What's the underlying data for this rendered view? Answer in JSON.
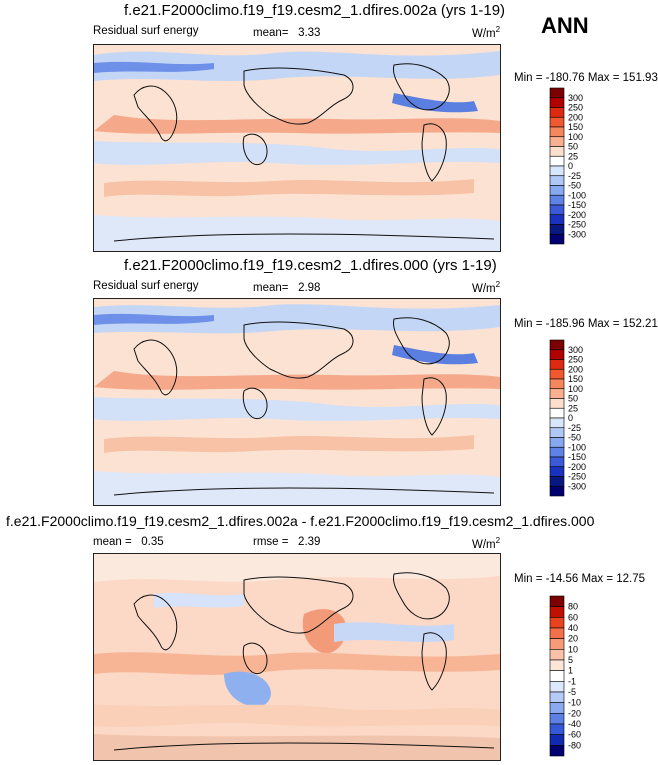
{
  "season": "ANN",
  "panels": [
    {
      "title": "f.e21.F2000climo.f19_f19.cesm2_1.dfires.002a (yrs 1-19)",
      "left_label": "Residual surf energy",
      "center_label": "mean=   3.33",
      "units": "W/m",
      "units_sup": "2",
      "minmax": "Min = -180.76 Max = 151.93",
      "colorbar_labels": [
        "300",
        "250",
        "200",
        "150",
        "100",
        "50",
        "25",
        "0",
        "-25",
        "-50",
        "-100",
        "-150",
        "-200",
        "-250",
        "-300"
      ]
    },
    {
      "title": "f.e21.F2000climo.f19_f19.cesm2_1.dfires.000 (yrs 1-19)",
      "left_label": "Residual surf energy",
      "center_label": "mean=   2.98",
      "units": "W/m",
      "units_sup": "2",
      "minmax": "Min = -185.96 Max = 152.21",
      "colorbar_labels": [
        "300",
        "250",
        "200",
        "150",
        "100",
        "50",
        "25",
        "0",
        "-25",
        "-50",
        "-100",
        "-150",
        "-200",
        "-250",
        "-300"
      ]
    },
    {
      "title": "f.e21.F2000climo.f19_f19.cesm2_1.dfires.002a - f.e21.F2000climo.f19_f19.cesm2_1.dfires.000",
      "left_label": "mean =   0.35",
      "center_label": "rmse =   2.39",
      "units": "W/m",
      "units_sup": "2",
      "minmax": "Min = -14.56 Max = 12.75",
      "colorbar_labels": [
        "80",
        "60",
        "40",
        "20",
        "10",
        "5",
        "1",
        "-1",
        "-5",
        "-10",
        "-20",
        "-40",
        "-60",
        "-80"
      ]
    }
  ],
  "colors": {
    "bar": [
      "#7d0000",
      "#b00000",
      "#dd2a10",
      "#f0592f",
      "#f5875f",
      "#f9b090",
      "#fce0cd",
      "#ffffff",
      "#d8e6fb",
      "#b0c8f5",
      "#88a8ef",
      "#5f82e6",
      "#3a5ad8",
      "#1a32c0",
      "#081880",
      "#000070"
    ],
    "diffbar": [
      "#7d0000",
      "#c01000",
      "#e8431e",
      "#f2704a",
      "#f69b7a",
      "#fac3a9",
      "#fde6d8",
      "#ffffff",
      "#dce8fb",
      "#b3cbf6",
      "#8aa9ef",
      "#5d80e5",
      "#3558d6",
      "#102ab0",
      "#000070"
    ]
  }
}
